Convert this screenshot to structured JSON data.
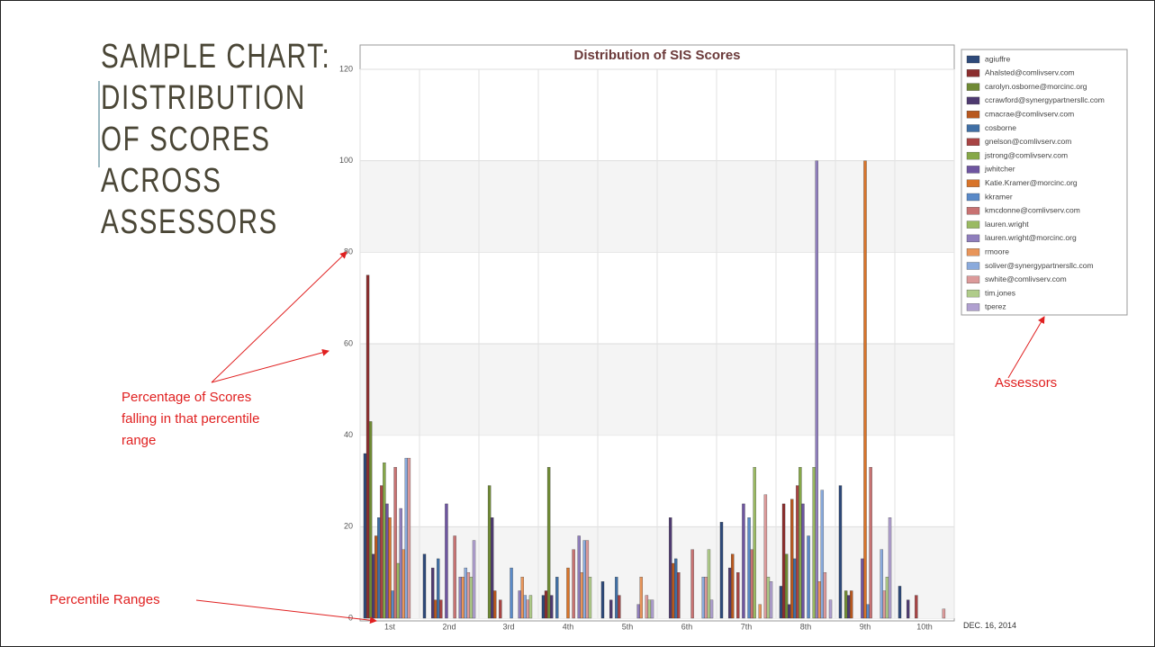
{
  "slide_title": "SAMPLE CHART: DISTRIBUTION OF SCORES ACROSS ASSESSORS",
  "date": "DEC. 16, 2014",
  "annotations": [
    "Percentage of Scores falling in that percentile range",
    "Assessors",
    "Percentile Ranges"
  ],
  "chart_data": {
    "type": "bar",
    "title": "Distribution of SIS Scores",
    "categories": [
      "1st",
      "2nd",
      "3rd",
      "4th",
      "5th",
      "6th",
      "7th",
      "8th",
      "9th",
      "10th"
    ],
    "ylim": [
      0,
      120
    ],
    "yticks": [
      0,
      20,
      40,
      60,
      80,
      100,
      120
    ],
    "grid": true,
    "legend": "right",
    "series": [
      {
        "name": "agiuffre",
        "color": "#2e4a7a",
        "values": [
          36,
          14,
          0,
          5,
          8,
          0,
          21,
          7,
          29,
          7
        ]
      },
      {
        "name": "Ahalsted@comlivserv.com",
        "color": "#8b2e2e",
        "values": [
          75,
          0,
          0,
          6,
          0,
          0,
          0,
          25,
          0,
          0
        ]
      },
      {
        "name": "carolyn.osborne@morcinc.org",
        "color": "#6f8a34",
        "values": [
          43,
          0,
          29,
          33,
          0,
          0,
          0,
          14,
          6,
          0
        ]
      },
      {
        "name": "ccrawford@synergypartnersllc.com",
        "color": "#4e3a70",
        "values": [
          14,
          11,
          22,
          5,
          4,
          22,
          11,
          3,
          5,
          4
        ]
      },
      {
        "name": "cmacrae@comlivserv.com",
        "color": "#b8581f",
        "values": [
          18,
          4,
          6,
          0,
          0,
          12,
          14,
          26,
          6,
          0
        ]
      },
      {
        "name": "cosborne",
        "color": "#3f6fa5",
        "values": [
          22,
          13,
          0,
          9,
          9,
          13,
          0,
          13,
          0,
          0
        ]
      },
      {
        "name": "gnelson@comlivserv.com",
        "color": "#a84444",
        "values": [
          29,
          4,
          4,
          0,
          5,
          10,
          10,
          29,
          0,
          5
        ]
      },
      {
        "name": "jstrong@comlivserv.com",
        "color": "#86a848",
        "values": [
          34,
          0,
          0,
          0,
          0,
          0,
          0,
          33,
          0,
          0
        ]
      },
      {
        "name": "jwhitcher",
        "color": "#6e55a0",
        "values": [
          25,
          25,
          0,
          0,
          0,
          0,
          25,
          25,
          13,
          0
        ]
      },
      {
        "name": "Katie.Kramer@morcinc.org",
        "color": "#d8742a",
        "values": [
          22,
          0,
          0,
          11,
          0,
          0,
          0,
          0,
          100,
          0
        ]
      },
      {
        "name": "kkramer",
        "color": "#5a8ac8",
        "values": [
          6,
          0,
          11,
          0,
          0,
          0,
          22,
          18,
          3,
          0
        ]
      },
      {
        "name": "kmcdonne@comlivserv.com",
        "color": "#c87272",
        "values": [
          33,
          18,
          0,
          15,
          0,
          15,
          15,
          0,
          33,
          0
        ]
      },
      {
        "name": "lauren.wright",
        "color": "#9aba62",
        "values": [
          12,
          0,
          0,
          0,
          0,
          0,
          33,
          33,
          0,
          0
        ]
      },
      {
        "name": "lauren.wright@morcinc.org",
        "color": "#8f7ebc",
        "values": [
          24,
          9,
          6,
          18,
          3,
          0,
          0,
          100,
          0,
          0
        ]
      },
      {
        "name": "rmoore",
        "color": "#e8955a",
        "values": [
          15,
          9,
          9,
          10,
          9,
          0,
          3,
          8,
          0,
          0
        ]
      },
      {
        "name": "soliver@synergypartnersllc.com",
        "color": "#8aaadc",
        "values": [
          35,
          11,
          5,
          17,
          0,
          9,
          0,
          28,
          15,
          0
        ]
      },
      {
        "name": "swhite@comlivserv.com",
        "color": "#dc9a9a",
        "values": [
          35,
          10,
          4,
          17,
          5,
          9,
          27,
          10,
          6,
          2
        ]
      },
      {
        "name": "tim.jones",
        "color": "#b0cc8a",
        "values": [
          0,
          9,
          5,
          9,
          4,
          15,
          9,
          0,
          9,
          0
        ]
      },
      {
        "name": "tperez",
        "color": "#b0a0d0",
        "values": [
          0,
          17,
          0,
          0,
          4,
          4,
          8,
          4,
          22,
          0
        ]
      }
    ]
  }
}
